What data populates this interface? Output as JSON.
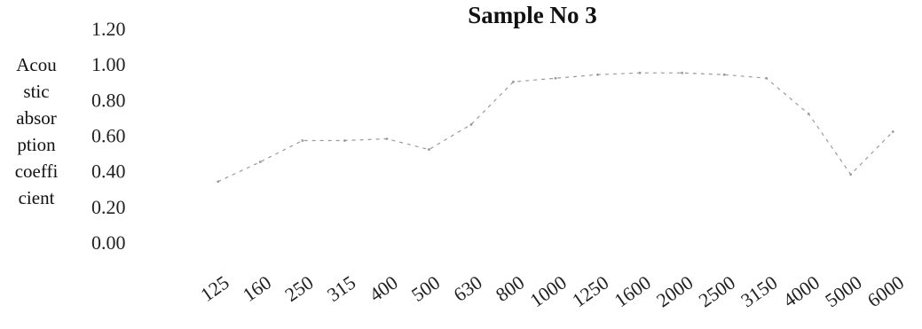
{
  "chart_data": {
    "type": "line",
    "title": "Sample No 3",
    "ylabel_lines": [
      "Acou",
      "stic",
      "absor",
      "ption",
      "coeffi",
      "cient"
    ],
    "xlabel": "",
    "ylim": [
      0,
      1.2
    ],
    "yticks": [
      "0.00",
      "0.20",
      "0.40",
      "0.60",
      "0.80",
      "1.00",
      "1.20"
    ],
    "categories": [
      "125",
      "160",
      "250",
      "315",
      "400",
      "500",
      "630",
      "800",
      "1000",
      "1250",
      "1600",
      "2000",
      "2500",
      "3150",
      "4000",
      "5000",
      "6000"
    ],
    "series": [
      {
        "values": [
          0.34,
          0.45,
          0.57,
          0.57,
          0.58,
          0.52,
          0.66,
          0.9,
          0.92,
          0.94,
          0.95,
          0.95,
          0.94,
          0.92,
          0.72,
          0.38,
          0.62
        ],
        "color": "#9a9a9a"
      }
    ],
    "grid": false,
    "legend": "none"
  }
}
